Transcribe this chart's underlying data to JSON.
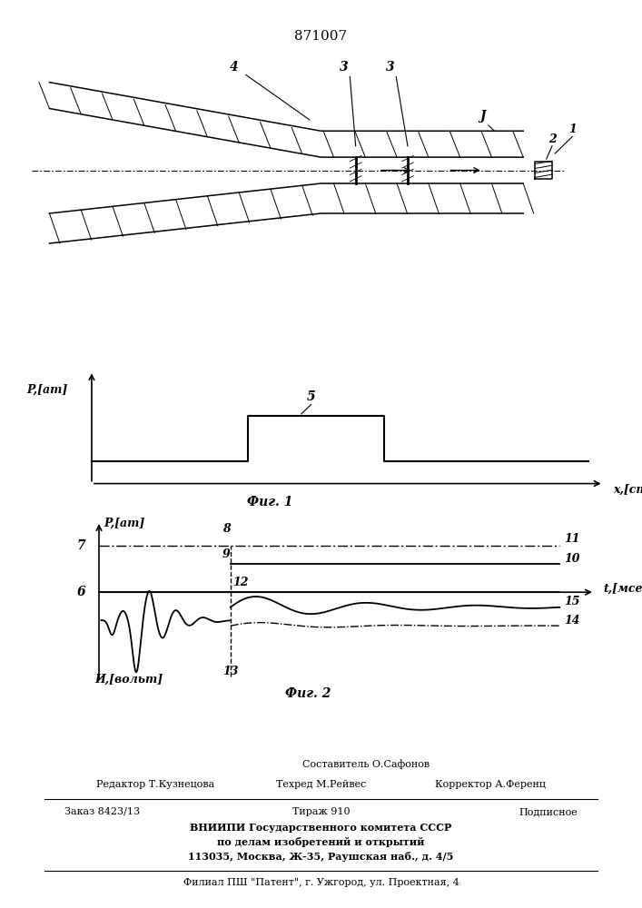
{
  "patent_number": "871007",
  "fig1_ylabel": "P,[am]",
  "fig1_xlabel": "x,[cm]",
  "fig1_caption": "Фиг. 1",
  "fig2_ylabel_top": "P,[am]",
  "fig2_ylabel_bottom": "И,[вольт]",
  "fig2_xlabel": "t,[мсек]",
  "fig2_caption": "Фиг. 2",
  "footer_line1": "Составитель О.Сафонов",
  "footer_line2_left": "Редактор Т.Кузнецова",
  "footer_line2_mid": "Техред М.Рейвес",
  "footer_line2_right": "Корректор А.Ференц",
  "footer_line3_left": "Заказ 8423/13",
  "footer_line3_mid": "Тираж 910",
  "footer_line3_right": "Подписное",
  "footer_line4": "ВНИИПИ Государственного комитета СССР",
  "footer_line5": "по делам изобретений и открытий",
  "footer_line6": "113035, Москва, Ж-35, Раушская наб., д. 4/5",
  "footer_line7": "Филиал ПШ \"Патент\", г. Ужгород, ул. Проектная, 4"
}
